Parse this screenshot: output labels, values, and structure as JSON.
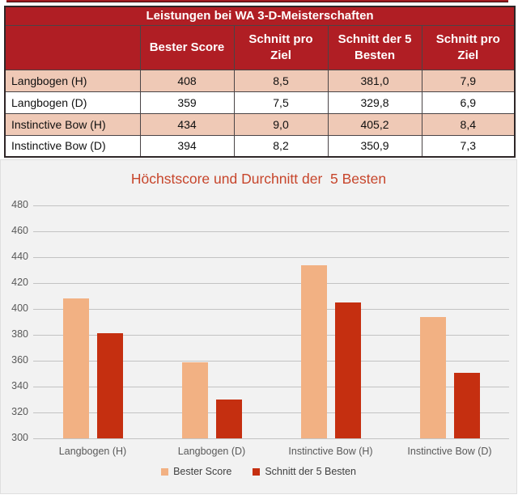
{
  "table": {
    "title": "Leistungen bei WA 3-D-Meisterschaften",
    "header": {
      "row_label_col": "",
      "columns": [
        "Bester Score",
        "Schnitt pro Ziel",
        "Schnitt der 5 Besten",
        "Schnitt pro Ziel"
      ]
    },
    "rows": [
      {
        "label": "Langbogen (H)",
        "values": [
          "408",
          "8,5",
          "381,0",
          "7,9"
        ]
      },
      {
        "label": "Langbogen (D)",
        "values": [
          "359",
          "7,5",
          "329,8",
          "6,9"
        ]
      },
      {
        "label": "Instinctive Bow (H)",
        "values": [
          "434",
          "9,0",
          "405,2",
          "8,4"
        ]
      },
      {
        "label": "Instinctive Bow (D)",
        "values": [
          "394",
          "8,2",
          "350,9",
          "7,3"
        ]
      }
    ],
    "colors": {
      "header_bg": "#B01E24",
      "row_alt_bg": "#EFC9B6",
      "row_bg": "#FFFFFF",
      "header_text": "#FFFFFF"
    }
  },
  "chart_data": {
    "type": "bar",
    "title": "Höchstscore und Durchnitt der  5 Besten",
    "categories": [
      "Langbogen (H)",
      "Langbogen (D)",
      "Instinctive Bow (H)",
      "Instinctive Bow (D)"
    ],
    "series": [
      {
        "name": "Bester Score",
        "color": "#F2B183",
        "values": [
          408,
          359,
          434,
          394
        ]
      },
      {
        "name": "Schnitt der 5 Besten",
        "color": "#C52F10",
        "values": [
          381.0,
          329.8,
          405.2,
          350.9
        ]
      }
    ],
    "ylim": [
      300,
      480
    ],
    "ytick_step": 20,
    "grid": true,
    "legend_position": "bottom",
    "styles": {
      "background": "#F2F2F2",
      "gridline": "#C3C3C3",
      "axis_text": "#595959",
      "legend_text": "#404040",
      "title_color": "#C7452B"
    }
  }
}
